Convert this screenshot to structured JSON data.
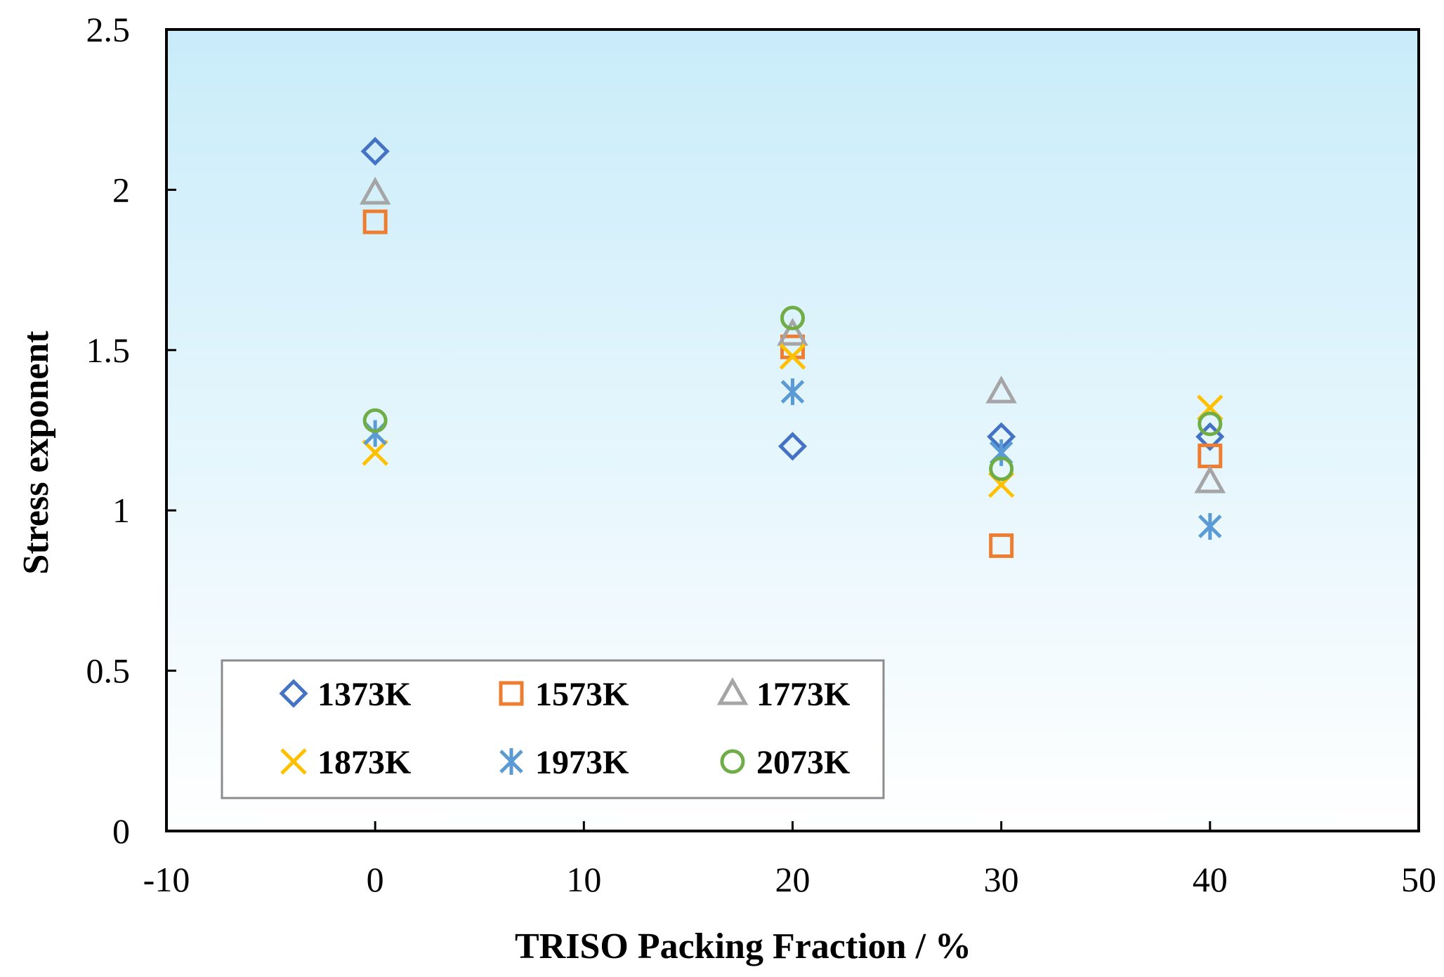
{
  "chart_data": {
    "type": "scatter",
    "title": "",
    "xlabel": "TRISO Packing Fraction  / %",
    "ylabel": "Stress exponent",
    "xlim": [
      -10,
      50
    ],
    "ylim": [
      0,
      2.5
    ],
    "xticks": [
      -10,
      0,
      10,
      20,
      30,
      40,
      50
    ],
    "yticks": [
      0,
      0.5,
      1,
      1.5,
      2,
      2.5
    ],
    "xtick_labels": [
      "-10",
      "0",
      "10",
      "20",
      "30",
      "40",
      "50"
    ],
    "ytick_labels": [
      "0",
      "0.5",
      "1",
      "1.5",
      "2",
      "2.5"
    ],
    "grid": false,
    "legend_position": "bottom-left",
    "background": {
      "top": "#c9ecfa",
      "bottom": "#ffffff"
    },
    "series": [
      {
        "name": "1373K",
        "marker": "diamond",
        "color": "#4472c4",
        "x": [
          0,
          20,
          30,
          40
        ],
        "y": [
          2.12,
          1.2,
          1.23,
          1.23
        ]
      },
      {
        "name": "1573K",
        "marker": "square",
        "color": "#ed7d31",
        "x": [
          0,
          20,
          30,
          40
        ],
        "y": [
          1.9,
          1.51,
          0.89,
          1.17
        ]
      },
      {
        "name": "1773K",
        "marker": "triangle",
        "color": "#a5a5a5",
        "x": [
          0,
          20,
          30,
          40
        ],
        "y": [
          1.99,
          1.55,
          1.37,
          1.09
        ]
      },
      {
        "name": "1873K",
        "marker": "x",
        "color": "#ffc000",
        "x": [
          0,
          20,
          30,
          40
        ],
        "y": [
          1.18,
          1.48,
          1.08,
          1.32
        ]
      },
      {
        "name": "1973K",
        "marker": "asterisk",
        "color": "#5b9bd5",
        "x": [
          0,
          20,
          30,
          40
        ],
        "y": [
          1.24,
          1.37,
          1.18,
          0.95
        ]
      },
      {
        "name": "2073K",
        "marker": "circle",
        "color": "#70ad47",
        "x": [
          0,
          20,
          30,
          40
        ],
        "y": [
          1.28,
          1.6,
          1.13,
          1.27
        ]
      }
    ]
  }
}
